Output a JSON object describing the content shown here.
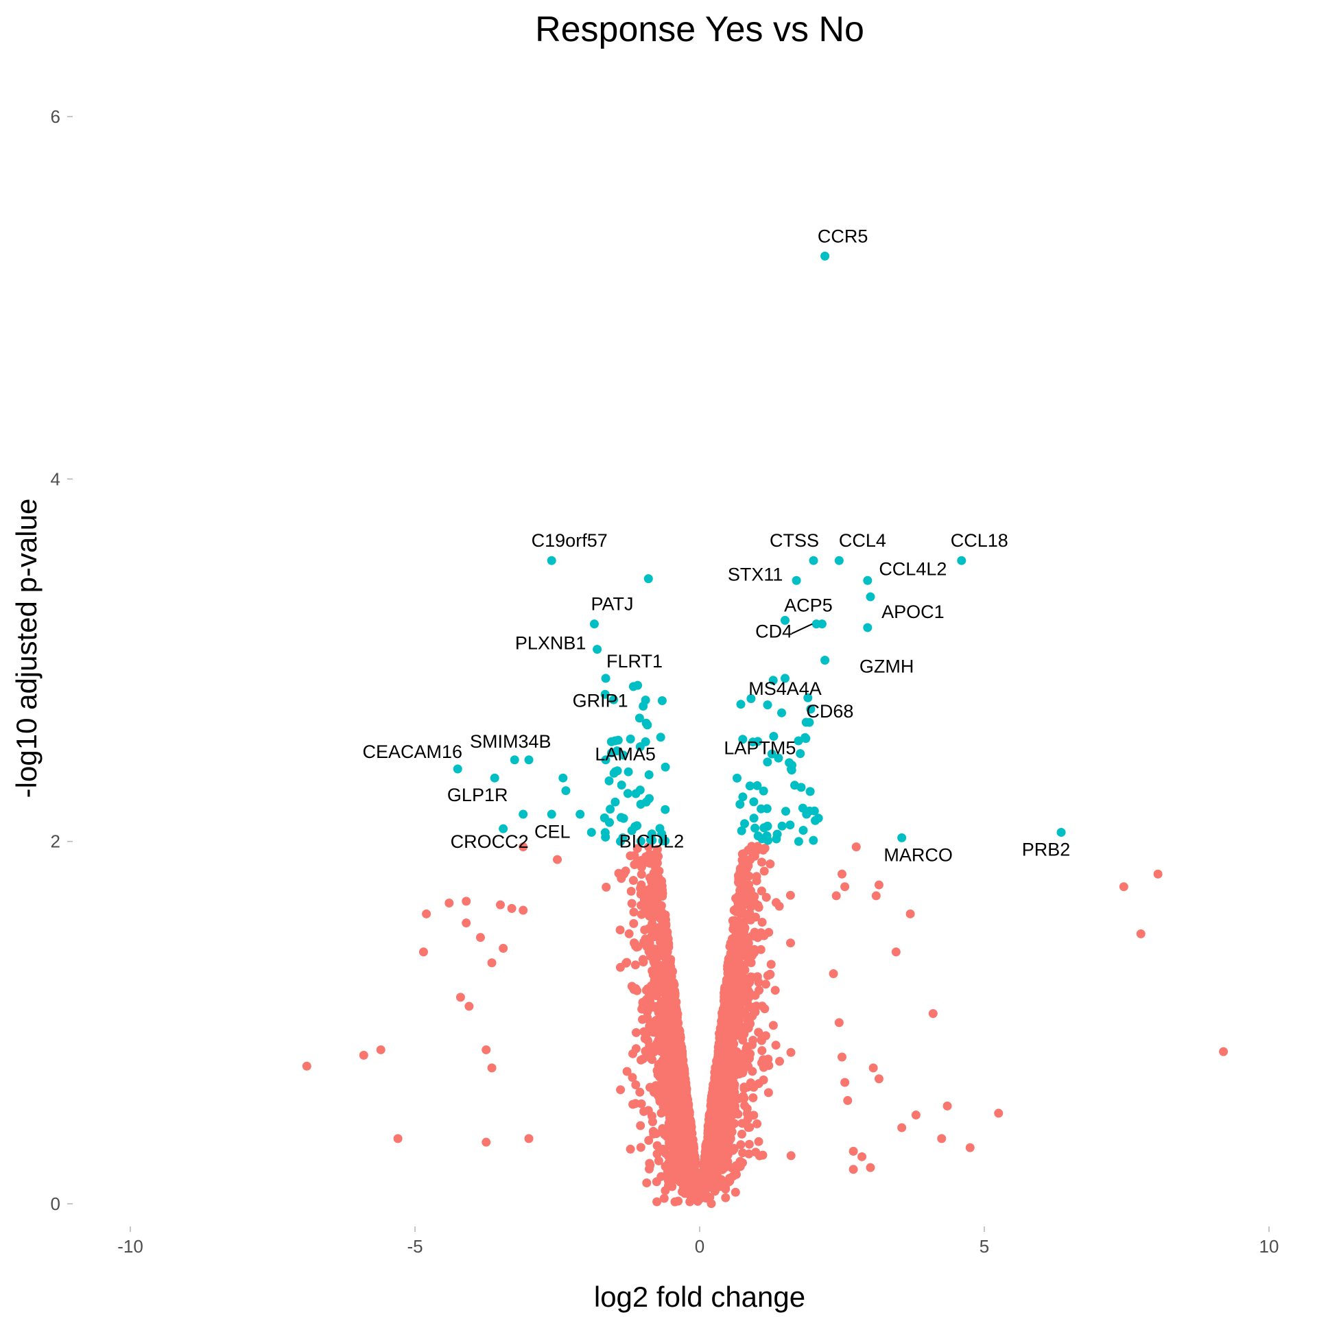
{
  "chart_data": {
    "type": "scatter",
    "title": "Response Yes vs No",
    "xlabel": "log2 fold change",
    "ylabel": "-log10 adjusted p-value",
    "xlim": [
      -10,
      10
    ],
    "ylim": [
      0,
      6
    ],
    "xticks": [
      -10,
      -5,
      0,
      5,
      10
    ],
    "yticks": [
      0,
      2,
      4,
      6
    ],
    "grid": false,
    "legend": "none",
    "significance_threshold": 2,
    "colors": {
      "significant": "#00BFC4",
      "not_significant": "#F8766D"
    },
    "labeled_points": [
      {
        "gene": "CCR5",
        "x": 2.2,
        "y": 5.23
      },
      {
        "gene": "C19orf57",
        "x": -2.6,
        "y": 3.55
      },
      {
        "gene": "CTSS",
        "x": 2.0,
        "y": 3.55
      },
      {
        "gene": "CCL4",
        "x": 2.45,
        "y": 3.55
      },
      {
        "gene": "CCL18",
        "x": 4.6,
        "y": 3.55
      },
      {
        "gene": "STX11",
        "x": 1.7,
        "y": 3.44
      },
      {
        "gene": "CCL4L2",
        "x": 2.95,
        "y": 3.44
      },
      {
        "gene": "PATJ",
        "x": -1.85,
        "y": 3.2
      },
      {
        "gene": "ACP5",
        "x": 2.15,
        "y": 3.2
      },
      {
        "gene": "APOC1",
        "x": 2.95,
        "y": 3.18
      },
      {
        "gene": "CD4",
        "x": 2.05,
        "y": 3.2
      },
      {
        "gene": "PLXNB1",
        "x": -1.8,
        "y": 3.06
      },
      {
        "gene": "GZMH",
        "x": 2.2,
        "y": 3.0
      },
      {
        "gene": "FLRT1",
        "x": -1.65,
        "y": 2.9
      },
      {
        "gene": "MS4A4A",
        "x": 1.5,
        "y": 2.9
      },
      {
        "gene": "GRIP1",
        "x": -0.95,
        "y": 2.78
      },
      {
        "gene": "CD68",
        "x": 1.95,
        "y": 2.73
      },
      {
        "gene": "LAPTM5",
        "x": 1.3,
        "y": 2.58
      },
      {
        "gene": "CEACAM16",
        "x": -4.25,
        "y": 2.4
      },
      {
        "gene": "SMIM34B",
        "x": -3.25,
        "y": 2.45
      },
      {
        "gene": "LAMA5",
        "x": -1.45,
        "y": 2.5
      },
      {
        "gene": "GLP1R",
        "x": -3.6,
        "y": 2.35
      },
      {
        "gene": "CEL",
        "x": -1.9,
        "y": 2.05
      },
      {
        "gene": "CROCC2",
        "x": -3.45,
        "y": 2.07
      },
      {
        "gene": "BICDL2",
        "x": -1.35,
        "y": 2.02
      },
      {
        "gene": "MARCO",
        "x": 3.55,
        "y": 2.02
      },
      {
        "gene": "PRB2",
        "x": 6.35,
        "y": 2.05
      }
    ],
    "extra_points": [
      {
        "x": -0.9,
        "y": 3.45
      },
      {
        "x": -3.0,
        "y": 2.45
      },
      {
        "x": -2.4,
        "y": 2.35
      },
      {
        "x": -2.35,
        "y": 2.28
      },
      {
        "x": -2.6,
        "y": 2.15
      },
      {
        "x": -3.1,
        "y": 2.15
      },
      {
        "x": -2.1,
        "y": 2.15
      },
      {
        "x": -1.65,
        "y": 2.45
      },
      {
        "x": -1.55,
        "y": 2.55
      },
      {
        "x": -0.95,
        "y": 2.55
      },
      {
        "x": 3.0,
        "y": 3.35
      },
      {
        "x": 1.5,
        "y": 3.22
      },
      {
        "x": -6.9,
        "y": 0.76
      },
      {
        "x": -5.9,
        "y": 0.82
      },
      {
        "x": -5.6,
        "y": 0.85
      },
      {
        "x": -5.3,
        "y": 0.36
      },
      {
        "x": -3.75,
        "y": 0.34
      },
      {
        "x": -4.85,
        "y": 1.39
      },
      {
        "x": -4.8,
        "y": 1.6
      },
      {
        "x": -4.4,
        "y": 1.66
      },
      {
        "x": -4.1,
        "y": 1.67
      },
      {
        "x": -4.1,
        "y": 1.55
      },
      {
        "x": -4.2,
        "y": 1.14
      },
      {
        "x": -4.05,
        "y": 1.09
      },
      {
        "x": -3.85,
        "y": 1.47
      },
      {
        "x": -3.65,
        "y": 1.33
      },
      {
        "x": -3.45,
        "y": 1.41
      },
      {
        "x": -3.5,
        "y": 1.65
      },
      {
        "x": -3.3,
        "y": 1.63
      },
      {
        "x": -3.1,
        "y": 1.62
      },
      {
        "x": -3.75,
        "y": 0.85
      },
      {
        "x": -3.65,
        "y": 0.75
      },
      {
        "x": -3.0,
        "y": 0.36
      },
      {
        "x": 7.45,
        "y": 1.75
      },
      {
        "x": 8.05,
        "y": 1.82
      },
      {
        "x": 7.75,
        "y": 1.49
      },
      {
        "x": 9.2,
        "y": 0.84
      },
      {
        "x": 4.1,
        "y": 1.05
      },
      {
        "x": 3.7,
        "y": 1.6
      },
      {
        "x": 3.45,
        "y": 1.39
      },
      {
        "x": 3.15,
        "y": 1.76
      },
      {
        "x": 3.1,
        "y": 1.7
      },
      {
        "x": 3.05,
        "y": 0.75
      },
      {
        "x": 3.15,
        "y": 0.69
      },
      {
        "x": 3.8,
        "y": 0.49
      },
      {
        "x": 3.55,
        "y": 0.42
      },
      {
        "x": 4.35,
        "y": 0.54
      },
      {
        "x": 4.25,
        "y": 0.36
      },
      {
        "x": 4.75,
        "y": 0.31
      },
      {
        "x": 5.25,
        "y": 0.5
      },
      {
        "x": 2.75,
        "y": 1.97
      },
      {
        "x": 3.0,
        "y": 0.2
      },
      {
        "x": 2.85,
        "y": 0.26
      },
      {
        "x": 2.7,
        "y": 0.29
      },
      {
        "x": 2.7,
        "y": 0.19
      },
      {
        "x": 2.6,
        "y": 0.57
      },
      {
        "x": 2.5,
        "y": 0.81
      },
      {
        "x": 2.55,
        "y": 0.67
      },
      {
        "x": 2.45,
        "y": 1.0
      },
      {
        "x": 2.35,
        "y": 1.27
      },
      {
        "x": 2.55,
        "y": 1.75
      },
      {
        "x": 2.4,
        "y": 1.7
      },
      {
        "x": 2.5,
        "y": 1.82
      },
      {
        "x": -3.1,
        "y": 1.97
      },
      {
        "x": -2.5,
        "y": 1.9
      }
    ],
    "cloud_points_note": "",
    "cloud_points_count": 2600,
    "cloud_seed": 7
  }
}
